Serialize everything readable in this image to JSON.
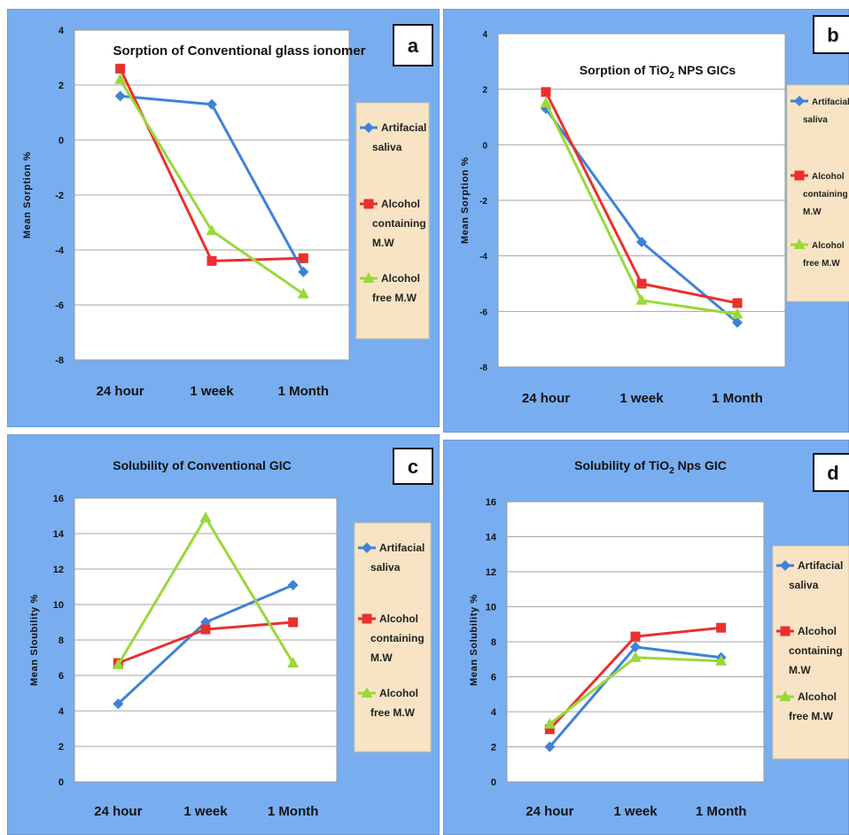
{
  "chart_data": [
    {
      "panel_letter": "a",
      "type": "line",
      "title": "Sorption of Conventional glass ionomer",
      "xlabel": "",
      "ylabel": "Mean Sorption %",
      "ylim": [
        -8,
        4
      ],
      "yticks": [
        "4",
        "2",
        "0",
        "-2",
        "-4",
        "-6",
        "-8"
      ],
      "categories": [
        "24 hour",
        "1 week",
        "1 Month"
      ],
      "grid": true,
      "legend_position": "right",
      "series": [
        {
          "name": "Artifacial saliva",
          "legend_lines": [
            "Artifacial",
            "saliva"
          ],
          "color": "#3f82d8",
          "marker": "diamond",
          "values": [
            1.6,
            1.3,
            -4.8
          ]
        },
        {
          "name": "Alcohol containing M.W",
          "legend_lines": [
            "Alcohol",
            "containing",
            "M.W"
          ],
          "color": "#e8312f",
          "marker": "square",
          "values": [
            2.6,
            -4.4,
            -4.3
          ]
        },
        {
          "name": "Alcohol free M.W",
          "legend_lines": [
            "Alcohol",
            "free M.W"
          ],
          "color": "#9ad83a",
          "marker": "triangle",
          "values": [
            2.2,
            -3.3,
            -5.6
          ]
        }
      ]
    },
    {
      "panel_letter": "b",
      "type": "line",
      "title": "Sorption of TiO2 NPS GICs",
      "title_parts": {
        "pre": "Sorption of TiO",
        "sub": "2",
        "post": " NPS GICs"
      },
      "xlabel": "",
      "ylabel": "Mean Sorption %",
      "ylim": [
        -8,
        4
      ],
      "yticks": [
        "4",
        "2",
        "0",
        "-2",
        "-4",
        "-6",
        "-8"
      ],
      "categories": [
        "24 hour",
        "1 week",
        "1 Month"
      ],
      "grid": true,
      "legend_position": "right",
      "series": [
        {
          "name": "Artifacial saliva",
          "legend_lines": [
            "Artifacial",
            "saliva"
          ],
          "color": "#3f82d8",
          "marker": "diamond",
          "values": [
            1.3,
            -3.5,
            -6.4
          ]
        },
        {
          "name": "Alcohol containing M.W",
          "legend_lines": [
            "Alcohol",
            "containing",
            "M.W"
          ],
          "color": "#e8312f",
          "marker": "square",
          "values": [
            1.9,
            -5.0,
            -5.7
          ]
        },
        {
          "name": "Alcohol free M.W",
          "legend_lines": [
            "Alcohol",
            "free M.W"
          ],
          "color": "#9ad83a",
          "marker": "triangle",
          "values": [
            1.5,
            -5.6,
            -6.1
          ]
        }
      ]
    },
    {
      "panel_letter": "c",
      "type": "line",
      "title": "Solubility of Conventional GIC",
      "xlabel": "",
      "ylabel": "Mean Sloubility %",
      "ylim": [
        0,
        16
      ],
      "yticks": [
        "16",
        "14",
        "12",
        "10",
        "8",
        "6",
        "4",
        "2",
        "0"
      ],
      "categories": [
        "24 hour",
        "1 week",
        "1 Month"
      ],
      "grid": true,
      "legend_position": "right",
      "series": [
        {
          "name": "Artifacial saliva",
          "legend_lines": [
            "Artifacial",
            "saliva"
          ],
          "color": "#3f82d8",
          "marker": "diamond",
          "values": [
            4.4,
            9.0,
            11.1
          ]
        },
        {
          "name": "Alcohol containing M.W",
          "legend_lines": [
            "Alcohol",
            "containing",
            "M.W"
          ],
          "color": "#e8312f",
          "marker": "square",
          "values": [
            6.7,
            8.6,
            9.0
          ]
        },
        {
          "name": "Alcohol free M.W",
          "legend_lines": [
            "Alcohol",
            "free M.W"
          ],
          "color": "#9ad83a",
          "marker": "triangle",
          "values": [
            6.6,
            14.9,
            6.7
          ]
        }
      ]
    },
    {
      "panel_letter": "d",
      "type": "line",
      "title": "Solubility of TiO2 Nps GIC",
      "title_parts": {
        "pre": "Solubility of TiO",
        "sub": "2",
        "post": " Nps GIC"
      },
      "xlabel": "",
      "ylabel": "Mean Solubility %",
      "ylim": [
        0,
        16
      ],
      "yticks": [
        "16",
        "14",
        "12",
        "10",
        "8",
        "6",
        "4",
        "2",
        "0"
      ],
      "categories": [
        "24 hour",
        "1 week",
        "1 Month"
      ],
      "grid": true,
      "legend_position": "right",
      "series": [
        {
          "name": "Artifacial saliva",
          "legend_lines": [
            "Artifacial",
            "saliva"
          ],
          "color": "#3f82d8",
          "marker": "diamond",
          "values": [
            2.0,
            7.7,
            7.1
          ]
        },
        {
          "name": "Alcohol containing M.W",
          "legend_lines": [
            "Alcohol",
            "containing",
            "M.W"
          ],
          "color": "#e8312f",
          "marker": "square",
          "values": [
            3.0,
            8.3,
            8.8
          ]
        },
        {
          "name": "Alcohol free M.W",
          "legend_lines": [
            "Alcohol",
            "free M.W"
          ],
          "color": "#9ad83a",
          "marker": "triangle",
          "values": [
            3.3,
            7.1,
            6.9
          ]
        }
      ]
    }
  ],
  "colors": {
    "panel_bg": "#78aef0",
    "plot_bg": "#ffffff",
    "legend_bg": "#f8e4c4",
    "grid": "#a6a6a6"
  }
}
